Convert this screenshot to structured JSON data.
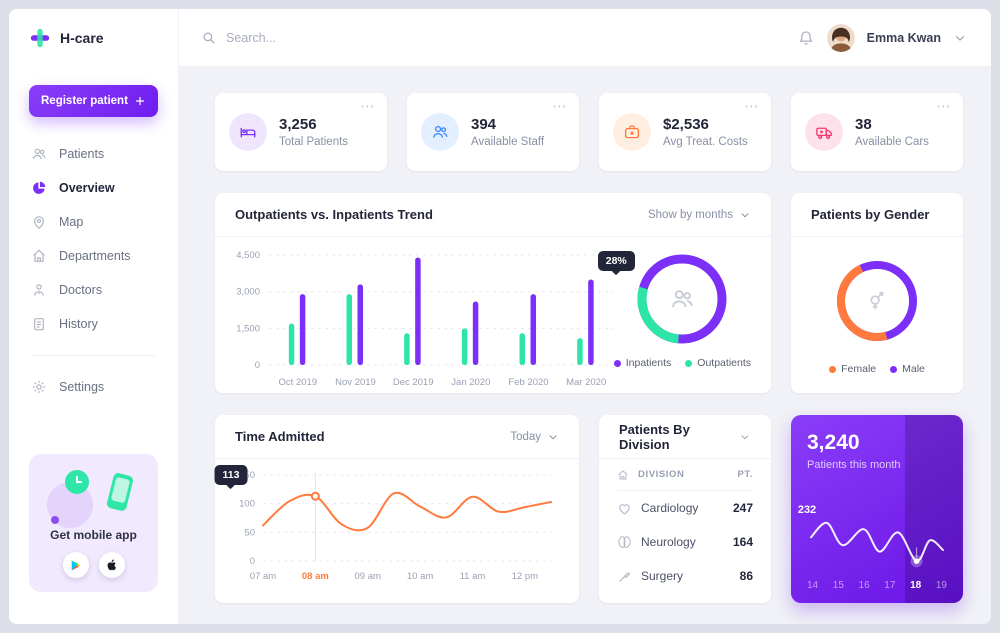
{
  "icons": {
    "more": "⋯"
  },
  "app": {
    "name": "H-care",
    "accent": "#7b2ff7",
    "green": "#2ce5a7",
    "orange": "#ff7a3c",
    "pink": "#f4386c",
    "blue": "#3d8af7"
  },
  "topbar": {
    "search_placeholder": "Search...",
    "user_name": "Emma Kwan"
  },
  "sidebar": {
    "register_label": "Register patient",
    "items": [
      {
        "label": "Patients"
      },
      {
        "label": "Overview"
      },
      {
        "label": "Map"
      },
      {
        "label": "Departments"
      },
      {
        "label": "Doctors"
      },
      {
        "label": "History"
      }
    ],
    "settings_label": "Settings",
    "promo_title": "Get mobile app"
  },
  "stats": [
    {
      "value": "3,256",
      "label": "Total Patients",
      "icon": "bed-icon",
      "color": "#7b2ff7",
      "bg": "#efe6fe"
    },
    {
      "value": "394",
      "label": "Available Staff",
      "icon": "staff-icon",
      "color": "#3d8af7",
      "bg": "#e3eeff"
    },
    {
      "value": "$2,536",
      "label": "Avg Treat. Costs",
      "icon": "medical-bag-icon",
      "color": "#ff7a3c",
      "bg": "#ffefe2"
    },
    {
      "value": "38",
      "label": "Available Cars",
      "icon": "ambulance-icon",
      "color": "#f4386c",
      "bg": "#fde2ec"
    }
  ],
  "trend_card": {
    "title": "Outpatients vs. Inpatients Trend",
    "filter_label": "Show by months",
    "tooltip": "28%",
    "legend": [
      {
        "label": "Inpatients",
        "color": "#7b2ff7"
      },
      {
        "label": "Outpatients",
        "color": "#2ce5a7"
      }
    ],
    "chart_data": {
      "type": "bar",
      "categories": [
        "Oct 2019",
        "Nov 2019",
        "Dec 2019",
        "Jan 2020",
        "Feb 2020",
        "Mar 2020"
      ],
      "series": [
        {
          "name": "Outpatients",
          "color": "#2ce5a7",
          "values": [
            1700,
            2900,
            1300,
            1500,
            1300,
            1100
          ]
        },
        {
          "name": "Inpatients",
          "color": "#7b2ff7",
          "values": [
            2900,
            3300,
            4400,
            2600,
            2900,
            3500
          ]
        }
      ],
      "yticks": [
        0,
        1500,
        3000,
        4500
      ],
      "ylim": [
        0,
        4500
      ],
      "donut": {
        "type": "pie",
        "labels": [
          "Inpatients",
          "Outpatients"
        ],
        "values": [
          72,
          28
        ],
        "highlight": "28%"
      }
    }
  },
  "gender_card": {
    "title": "Patients by Gender",
    "legend": [
      {
        "label": "Female",
        "color": "#ff7a3c"
      },
      {
        "label": "Male",
        "color": "#7b2ff7"
      }
    ],
    "chart_data": {
      "type": "pie",
      "labels": [
        "Female",
        "Male"
      ],
      "values": [
        47,
        53
      ]
    }
  },
  "time_card": {
    "title": "Time Admitted",
    "filter_label": "Today",
    "tooltip": "113",
    "chart_data": {
      "type": "line",
      "color": "#ff7a3c",
      "xlabels": [
        "07 am",
        "08 am",
        "09 am",
        "10 am",
        "11 am",
        "12 pm"
      ],
      "highlighted_xlabel": "08 am",
      "yticks": [
        0,
        50,
        100,
        150
      ],
      "ylim": [
        0,
        150
      ],
      "points": [
        {
          "t": 0,
          "v": 62
        },
        {
          "t": 0.5,
          "v": 104
        },
        {
          "t": 1,
          "v": 113
        },
        {
          "t": 1.5,
          "v": 64
        },
        {
          "t": 2,
          "v": 58
        },
        {
          "t": 2.5,
          "v": 118
        },
        {
          "t": 3,
          "v": 95
        },
        {
          "t": 3.5,
          "v": 76
        },
        {
          "t": 4,
          "v": 112
        },
        {
          "t": 4.5,
          "v": 86
        },
        {
          "t": 5,
          "v": 94
        },
        {
          "t": 5.5,
          "v": 103
        }
      ],
      "marked_index": 2
    }
  },
  "division_card": {
    "title": "Patients By Division",
    "columns": {
      "division": "DIVISION",
      "patients": "PT."
    },
    "rows": [
      {
        "label": "Cardiology",
        "value": "247",
        "icon": "heart-icon"
      },
      {
        "label": "Neurology",
        "value": "164",
        "icon": "brain-icon"
      },
      {
        "label": "Surgery",
        "value": "86",
        "icon": "scalpel-icon"
      }
    ]
  },
  "month_card": {
    "value": "3,240",
    "label": "Patients this month",
    "tooltip": "232",
    "chart_data": {
      "type": "line",
      "categories": [
        "14",
        "15",
        "16",
        "17",
        "18",
        "19"
      ],
      "highlighted_category": "18",
      "points": [
        {
          "d": 0,
          "v": 247
        },
        {
          "d": 0.6,
          "v": 256
        },
        {
          "d": 1.2,
          "v": 242
        },
        {
          "d": 2,
          "v": 252
        },
        {
          "d": 2.6,
          "v": 238
        },
        {
          "d": 3.3,
          "v": 250
        },
        {
          "d": 4,
          "v": 232
        },
        {
          "d": 4.5,
          "v": 245
        },
        {
          "d": 5,
          "v": 239
        }
      ],
      "marked_index": 6
    }
  }
}
